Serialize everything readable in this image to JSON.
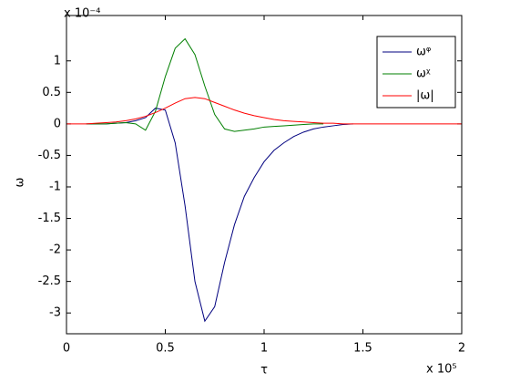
{
  "chart_data": {
    "type": "line",
    "x_multiplier": "x 10⁵",
    "y_multiplier": "x 10⁻⁴",
    "x_label": "τ",
    "y_label": "ω",
    "x": [
      0,
      0.05,
      0.1,
      0.15,
      0.2,
      0.25,
      0.3,
      0.35,
      0.4,
      0.45,
      0.5,
      0.55,
      0.6,
      0.65,
      0.7,
      0.75,
      0.8,
      0.85,
      0.9,
      0.95,
      1,
      1.05,
      1.1,
      1.15,
      1.2,
      1.25,
      1.3,
      1.35,
      1.4,
      1.45,
      1.5,
      2
    ],
    "series": [
      {
        "name": "ωᵠ",
        "color": "#00007f",
        "values": [
          null,
          null,
          0,
          0,
          0,
          0.01,
          0.02,
          0.05,
          0.1,
          0.25,
          0.22,
          -0.3,
          -1.3,
          -2.5,
          -3.13,
          -2.9,
          -2.2,
          -1.6,
          -1.15,
          -0.85,
          -0.6,
          -0.42,
          -0.3,
          -0.2,
          -0.13,
          -0.08,
          -0.05,
          -0.03,
          -0.01,
          0,
          null,
          null
        ]
      },
      {
        "name": "ωᵡ",
        "color": "#007f00",
        "values": [
          null,
          null,
          0,
          0,
          0,
          0.01,
          0.02,
          0,
          -0.1,
          0.2,
          0.75,
          1.2,
          1.35,
          1.1,
          0.6,
          0.15,
          -0.08,
          -0.12,
          -0.1,
          -0.08,
          -0.05,
          -0.04,
          -0.03,
          -0.02,
          -0.01,
          0,
          0,
          null,
          null,
          null,
          null,
          null
        ]
      },
      {
        "name": "|ω|",
        "color": "#ff0000",
        "values": [
          0,
          0,
          0,
          0.01,
          0.02,
          0.03,
          0.05,
          0.08,
          0.12,
          0.18,
          0.25,
          0.33,
          0.4,
          0.42,
          0.4,
          0.34,
          0.28,
          0.22,
          0.17,
          0.13,
          0.1,
          0.07,
          0.05,
          0.04,
          0.03,
          0.02,
          0.01,
          0.01,
          0,
          0,
          0,
          0
        ]
      }
    ],
    "xlim": [
      0,
      2
    ],
    "xticks": [
      0,
      0.5,
      1,
      1.5,
      2
    ],
    "ylim": [
      -3.33,
      1.72
    ],
    "yticks": [
      -3,
      -2.5,
      -2,
      -1.5,
      -1,
      -0.5,
      0,
      0.5,
      1
    ],
    "legend": "upper-right",
    "grid": false
  }
}
